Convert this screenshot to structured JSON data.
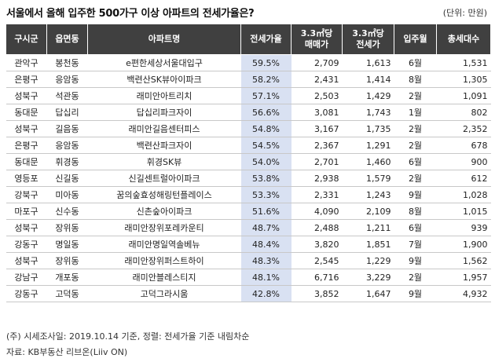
{
  "title": "서울에서 올해 입주한 500가구 이상 아파트의 전세가율은?",
  "unit": "(단위: 만원)",
  "columns": [
    "구시군",
    "읍면동",
    "아파트명",
    "전세가율",
    "3.3㎡당 매매가",
    "3.3㎡당 전세가",
    "입주월",
    "총세대수"
  ],
  "col_lines": {
    "sale": [
      "3.3㎡당",
      "매매가"
    ],
    "jeonse": [
      "3.3㎡당",
      "전세가"
    ]
  },
  "rows": [
    [
      "관악구",
      "봉천동",
      "e편한세상서울대입구",
      "59.5%",
      "2,709",
      "1,613",
      "6월",
      "1,531"
    ],
    [
      "은평구",
      "응암동",
      "백련산SK뷰아이파크",
      "58.2%",
      "2,431",
      "1,414",
      "8월",
      "1,305"
    ],
    [
      "성북구",
      "석관동",
      "래미안아트리치",
      "57.1%",
      "2,503",
      "1,429",
      "2월",
      "1,091"
    ],
    [
      "동대문",
      "답십리",
      "답십리파크자이",
      "56.6%",
      "3,081",
      "1,743",
      "1월",
      "802"
    ],
    [
      "성북구",
      "길음동",
      "래미안길음센터피스",
      "54.8%",
      "3,167",
      "1,735",
      "2월",
      "2,352"
    ],
    [
      "은평구",
      "응암동",
      "백련산파크자이",
      "54.5%",
      "2,367",
      "1,291",
      "2월",
      "678"
    ],
    [
      "동대문",
      "휘경동",
      "휘경SK뷰",
      "54.0%",
      "2,701",
      "1,460",
      "6월",
      "900"
    ],
    [
      "영등포",
      "신길동",
      "신길센트럴아이파크",
      "53.8%",
      "2,938",
      "1,579",
      "2월",
      "612"
    ],
    [
      "강북구",
      "미아동",
      "꿈의숲효성해링턴플레이스",
      "53.3%",
      "2,331",
      "1,243",
      "9월",
      "1,028"
    ],
    [
      "마포구",
      "신수동",
      "신촌숲아이파크",
      "51.6%",
      "4,090",
      "2,109",
      "8월",
      "1,015"
    ],
    [
      "성북구",
      "장위동",
      "래미안장위포레카운티",
      "48.7%",
      "2,488",
      "1,211",
      "6월",
      "939"
    ],
    [
      "강동구",
      "명일동",
      "래미안명일역솔베뉴",
      "48.4%",
      "3,820",
      "1,851",
      "7월",
      "1,900"
    ],
    [
      "성북구",
      "장위동",
      "래미안장위퍼스트하이",
      "48.3%",
      "2,545",
      "1,229",
      "9월",
      "1,562"
    ],
    [
      "강남구",
      "개포동",
      "래미안블레스티지",
      "48.1%",
      "6,716",
      "3,229",
      "2월",
      "1,957"
    ],
    [
      "강동구",
      "고덕동",
      "고덕그라시움",
      "42.8%",
      "3,852",
      "1,647",
      "9월",
      "4,932"
    ]
  ],
  "footnote": "(주) 시세조사일: 2019.10.14 기준, 정렬: 전세가율 기준 내림차순",
  "source": "자료: KB부동산 리브온(Liiv ON)",
  "colors": {
    "header_bg": "#404040",
    "rate_bg": "#d9e1f2"
  }
}
